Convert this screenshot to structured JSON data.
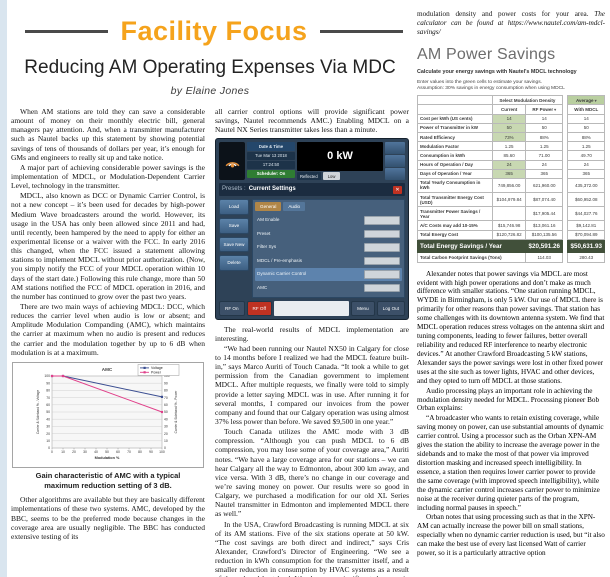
{
  "page": {
    "section_header": "Facility Focus",
    "title": "Reducing AM Operating Expenses Via MDC",
    "byline": "by Elaine Jones"
  },
  "colors": {
    "accent_orange": "#F5A31C",
    "table_input_green": "#C8D8B2",
    "total_row_green": "#41503A",
    "chart_voltage_blue": "#3B4E91",
    "chart_power_pink": "#E0408A"
  },
  "col1": {
    "paragraphs": [
      "When AM stations are told they can save a considerable amount of money on their monthly electric bill, general managers pay attention. And, when a transmitter manufacturer such as Nautel backs up this statement by showing potential savings of tens of thousands of dollars per year, it’s enough for GMs and engineers to really sit up and take notice.",
      "A major part of achieving considerable power savings is the implementation of MDCL, or Modulation-Dependent Carrier Level, technology in the transmitter.",
      "MDCL, also known as DCC or Dynamic Carrier Control, is not a new concept – it’s been used for decades by high-power Medium Wave broadcasters around the world. However, its usage in the USA has only been allowed since 2011 and had, until recently, been hampered by the need to apply for either an experimental license or a waiver with the FCC. In early 2016 this changed, when the FCC issued a statement allowing stations to implement MDCL without prior authorization. (Now, you simply notify the FCC of your MDCL operation within 10 days of the start date.) Following this rule change, more than 50 AM stations notified the FCC of MDCL operation in 2016, and the number has continued to grow over the past two years.",
      "There are two main ways of achieving MDCL: DCC, which reduces the carrier level when audio is low or absent; and Amplitude Modulation Companding (AMC), which maintains the carrier at maximum when no audio is present and reduces the carrier and the modulation together by up to 6 dB when modulation is at a maximum."
    ],
    "chart_caption": "Gain characteristic of AMC with a typical maximum reduction setting of 3 dB.",
    "paragraphs_after": [
      "Other algorithms are available but they are basically different implementations of these two systems. AMC, developed by the BBC, seems to be the preferred mode because changes in the coverage area are usually negligible. The BBC has conducted extensive testing of its"
    ]
  },
  "chart_data": {
    "type": "line",
    "title": "AMC",
    "xlabel": "Modulation %",
    "ylabel_left": "Carrier & Sideband % - Voltage",
    "ylabel_right": "Carrier & Sideband % - Power",
    "xlim": [
      0,
      100
    ],
    "ylim": [
      0,
      100
    ],
    "x_tick_step": 10,
    "y_tick_step": 10,
    "grid": "horizontal",
    "legend_position": "top-right",
    "series": [
      {
        "name": "Voltage",
        "color": "#3B4E91",
        "x": [
          0,
          10,
          100
        ],
        "y": [
          100,
          100,
          71
        ]
      },
      {
        "name": "Power",
        "color": "#E0408A",
        "x": [
          0,
          10,
          100
        ],
        "y": [
          100,
          100,
          50
        ]
      }
    ]
  },
  "col2": {
    "intro": "all carrier control options will provide significant power savings, Nautel recommends AMC.) Enabling MDCL on a Nautel NX Series transmitter takes less than a minute.",
    "paragraphs": [
      "The real-world results of MDCL implementation are interesting.",
      "“We had been running our Nautel NX50 in Calgary for close to 14 months before I realized we had the MDCL feature built-in,” says Marco Auriti of Touch Canada. “It took a while to get permission from the Canadian government to implement MDCL. After multiple requests, we finally were told to simply provide a letter saying MDCL was in use. After running it for several months, I compared our invoices from the power company and found that our Calgary operation was using almost 37% less power than before. We saved $9,500 in one year.”",
      "Touch Canada utilizes the AMC mode with 3 dB compression. “Although you can push MDCL to 6 dB compression, you may lose some of your coverage area,” Auriti notes. “We have a large coverage area for our stations – we can hear Calgary all the way to Edmonton, about 300 km away, and vice versa. With 3 dB, there’s no change in our coverage and we’re saving money on power. Our results were so good in Calgary, we purchased a modification for our old XL Series Nautel transmitter in Edmonton and implemented MDCL there as well.”",
      "In the USA, Crawford Broadcasting is running MDCL at six of its AM stations. Five of the six stations operate at 50 kW. “The cost savings are both direct and indirect,” says Cris Alexander, Crawford’s Director of Engineering. “We see a reduction in kWh consumption for the transmitter itself, and a smaller reduction in consumption by HVAC systems as a result of the reduced heat load. We also see a significant decrease in the electrical demand, which is often one of the"
    ]
  },
  "aui": {
    "datetime_label": "Date & Time",
    "date": "Tue Mar 13 2018",
    "time": "17:24:50",
    "scheduler": "Scheduler: On",
    "power": "0 kW",
    "reflected_label": "Reflected",
    "reflected_value": "Low",
    "presets_label": "Presets :",
    "presets_title": "Current Settings",
    "close": "✕",
    "side_buttons": [
      "Load",
      "Save",
      "Save New",
      "Delete"
    ],
    "tab_general": "General",
    "tab_audio": "Audio",
    "rows": [
      {
        "label": "AM Enable",
        "highlight": false
      },
      {
        "label": "Preset",
        "highlight": false
      },
      {
        "label": "Filter Sys",
        "highlight": false
      },
      {
        "label": "MDCL / Pre-emphasis",
        "highlight": false
      },
      {
        "label": "Dynamic Carrier Control",
        "highlight": true
      },
      {
        "label": "AMC",
        "highlight": false
      }
    ],
    "rf_on": "RF On",
    "rf_off": "RF Off",
    "menu": "Menu",
    "logout": "Log Out"
  },
  "col3": {
    "continuation_normal": "modulation density and power costs for your area. ",
    "continuation_italic": "The calculator can be found at https://www.nautel.com/am-mdcl-savings/",
    "section": {
      "heading": "AM Power Savings",
      "subheading": "Calculate your energy savings with Nautel's MDCL technology",
      "note1": "Enter values into the green cells to estimate your savings.",
      "note2": "Assumption: 30% savings in energy consumption when using MDCL",
      "table": {
        "density_label": "Select Modulation Density",
        "density_value": "Average",
        "columns": [
          "Current",
          "RF Power",
          "With MDCL"
        ],
        "rows": [
          {
            "label": "Cost per kWh (US cents)",
            "values": [
              "14",
              "14",
              "14"
            ],
            "inputs": [
              true,
              false,
              false
            ]
          },
          {
            "label": "Power of Transmitter in kW",
            "values": [
              "50",
              "50",
              "50"
            ],
            "inputs": [
              true,
              false,
              false
            ]
          },
          {
            "label": "Rated Efficiency",
            "values": [
              "73%",
              "88%",
              "88%"
            ],
            "inputs": [
              true,
              false,
              false
            ]
          },
          {
            "label": "Modulation Factor",
            "values": [
              "1.25",
              "1.25",
              "1.25"
            ],
            "inputs": [
              false,
              false,
              false
            ]
          },
          {
            "label": "Consumption in kWh",
            "values": [
              "85.60",
              "71.00",
              "49.70"
            ],
            "inputs": [
              false,
              false,
              false
            ]
          },
          {
            "label": "Hours of Operation / Day",
            "values": [
              "24",
              "24",
              "24"
            ],
            "inputs": [
              true,
              false,
              false
            ]
          },
          {
            "label": "Days of Operation / Year",
            "values": [
              "365",
              "365",
              "365"
            ],
            "inputs": [
              true,
              false,
              false
            ]
          },
          {
            "label": "Total Yearly Consumption in kWh",
            "values": [
              "749,856.00",
              "621,960.00",
              "435,372.00"
            ],
            "inputs": [
              false,
              false,
              false
            ]
          },
          {
            "label": "Total Transmitter Energy Cost (USD)",
            "values": [
              "$104,979.84",
              "$87,074.40",
              "$60,952.08"
            ],
            "inputs": [
              false,
              false,
              false
            ]
          },
          {
            "label": "Transmitter Power Savings / Year",
            "values": [
              "",
              "$17,905.44",
              "$44,027.76"
            ],
            "inputs": [
              false,
              false,
              false
            ]
          },
          {
            "label": "A/C Costs may add 10-15%",
            "values": [
              "$15,746.98",
              "$13,061.16",
              "$9,142.81"
            ],
            "inputs": [
              false,
              false,
              false
            ]
          },
          {
            "label": "Total Energy Cost",
            "values": [
              "$120,726.82",
              "$100,135.56",
              "$70,094.89"
            ],
            "inputs": [
              false,
              false,
              false
            ]
          }
        ],
        "total_row": {
          "label": "Total Energy Savings / Year",
          "values": [
            "$20,591.26",
            "$50,631.93"
          ]
        },
        "carbon_row": {
          "label": "Total Carbon Footprint Savings (Tons)",
          "values": [
            "114.03",
            "280.43"
          ]
        }
      }
    },
    "paragraphs": [
      "Alexander notes that power savings via MDCL are most evident with high power operations and don’t make as much difference with smaller stations. “One station running MDCL, WYDE in Birmingham, is only 5 kW. Our use of MDCL there is primarily for other reasons than power savings. That station has some challenges with its downtown antenna system. We find that MDCL operation reduces stress voltages on the antenna skirt and tuning components, leading to fewer failures, better overall reliability and reduced RF interference to nearby electronic devices.” At another Crawford Broadcasting 5 kW stations, Alexander says the power savings were lost in other fixed power uses at the site such as tower lights, HVAC and other devices, and they opted to turn off MDCL at those stations.",
      "Audio processing plays an important role in achieving the modulation density needed for MDCL. Processing pioneer Bob Orban explains:",
      "“A broadcaster who wants to retain existing coverage, while saving money on power, can use substantial amounts of dynamic carrier control. Using a processor such as the Orban XPN-AM gives the station the ability to increase the average power in the sidebands and to make the most of that power via improved distortion masking and increased speech intelligibility. In essence, a station then requires lower carrier power to provide the same coverage (with improved speech intelligibility), while the dynamic carrier control increases carrier power to minimize noise at the receiver during quieter parts of the program, including normal pauses in speech.”",
      "Orban notes that using processing such as that in the XPN-AM can actually increase the power bill on small stations, especially when no dynamic carrier reduction is used, but “it also can make the best use of every last licensed Watt of carrier power, so it is a particularly attractive option"
    ]
  }
}
